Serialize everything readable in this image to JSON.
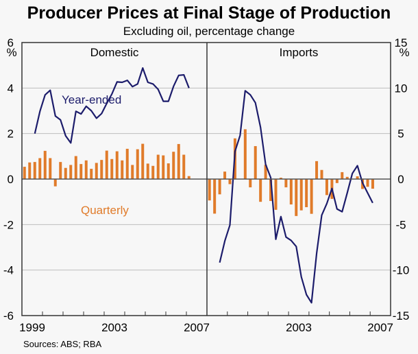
{
  "chart_data": {
    "type": "bar+line",
    "title": "Producer Prices at Final Stage of Production",
    "subtitle": "Excluding oil, percentage change",
    "source": "Sources: ABS; RBA",
    "colors": {
      "quarterly": "#e07b2a",
      "year_ended": "#1c1c6b",
      "grid": "#bdbdbd",
      "background": "#f7f7f7"
    },
    "annotations": {
      "year_ended": "Year-ended",
      "quarterly": "Quarterly"
    },
    "x_start": "1999 Q1",
    "panels": [
      {
        "name": "Domestic",
        "unit": "%",
        "axis_side": "left",
        "ylim": [
          -6,
          6
        ],
        "yticks": [
          -6,
          -4,
          -2,
          0,
          2,
          4,
          6
        ],
        "xtick_labels": [
          "1999",
          "2003",
          "2007"
        ],
        "series": [
          {
            "name": "Quarterly",
            "type": "bar",
            "start_quarter": 0,
            "values": [
              0.54,
              0.73,
              0.75,
              0.92,
              1.24,
              0.92,
              -0.32,
              0.75,
              0.49,
              0.62,
              1.01,
              0.66,
              0.82,
              0.45,
              0.71,
              0.84,
              1.25,
              0.88,
              1.22,
              0.82,
              1.33,
              0.62,
              1.31,
              1.55,
              0.68,
              0.58,
              1.07,
              1.04,
              0.69,
              1.2,
              1.54,
              1.07,
              0.13
            ]
          },
          {
            "name": "Year-ended",
            "type": "line",
            "start_quarter": 2,
            "values": [
              2.0,
              2.98,
              3.7,
              3.9,
              2.77,
              2.6,
              1.9,
              1.59,
              2.98,
              2.86,
              3.2,
              3.0,
              2.67,
              2.88,
              3.33,
              3.74,
              4.27,
              4.25,
              4.34,
              4.06,
              4.18,
              4.88,
              4.25,
              4.18,
              3.94,
              3.42,
              3.42,
              4.08,
              4.56,
              4.58,
              4.0
            ]
          }
        ]
      },
      {
        "name": "Imports",
        "unit": "%",
        "axis_side": "right",
        "ylim": [
          -15,
          15
        ],
        "yticks": [
          -15,
          -10,
          -5,
          0,
          5,
          10,
          15
        ],
        "xtick_labels": [
          "2003",
          "2007"
        ],
        "series": [
          {
            "name": "Quarterly",
            "type": "bar",
            "start_quarter": 0,
            "values": [
              -2.35,
              -3.8,
              -1.68,
              0.82,
              -0.56,
              4.47,
              0,
              5.47,
              -0.91,
              3.62,
              -2.5,
              1.56,
              -2.41,
              -3.38,
              0.15,
              -0.91,
              -2.79,
              -4.06,
              -3.44,
              -3.09,
              -3.82,
              1.97,
              1.0,
              -1.76,
              -2.18,
              -0.44,
              0.76,
              0.24,
              0,
              0.3,
              -1.09,
              -0.85,
              -1.06
            ]
          },
          {
            "name": "Year-ended",
            "type": "line",
            "start_quarter": 2,
            "values": [
              -9.18,
              -6.8,
              -5.06,
              3.03,
              4.8,
              9.7,
              9.26,
              8.38,
              5.68,
              1.62,
              0.15,
              -6.62,
              -4.12,
              -6.38,
              -6.74,
              -7.41,
              -10.74,
              -12.7,
              -13.59,
              -8.15,
              -3.97,
              -2.7,
              -1.03,
              -3.29,
              -3.59,
              -1.53,
              0.62,
              1.47,
              -0.44,
              -1.53,
              -2.62
            ]
          }
        ]
      }
    ]
  }
}
